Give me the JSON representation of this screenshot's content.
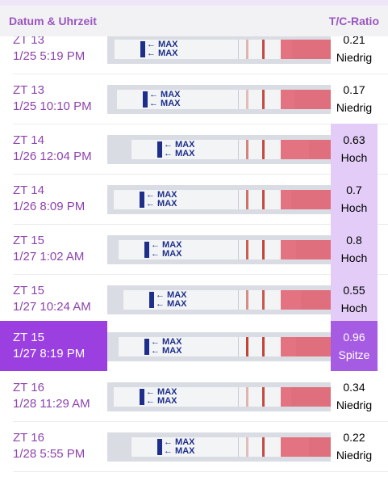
{
  "header": {
    "left": "Datum & Uhrzeit",
    "right": "T/C-Ratio"
  },
  "rows": [
    {
      "zt": "ZT 13",
      "datetime": "1/25 5:19 PM",
      "ratio": "0.21",
      "level": "Niedrig",
      "tline": 0.35,
      "cline": 0.9
    },
    {
      "zt": "ZT 13",
      "datetime": "1/25 10:10 PM",
      "ratio": "0.17",
      "level": "Niedrig",
      "tline": 0.3,
      "cline": 0.9
    },
    {
      "zt": "ZT 14",
      "datetime": "1/26 12:04 PM",
      "ratio": "0.63",
      "level": "Hoch",
      "tline": 0.6,
      "cline": 0.9
    },
    {
      "zt": "ZT 14",
      "datetime": "1/26 8:09 PM",
      "ratio": "0.7",
      "level": "Hoch",
      "tline": 0.7,
      "cline": 0.9
    },
    {
      "zt": "ZT 15",
      "datetime": "1/27 1:02 AM",
      "ratio": "0.8",
      "level": "Hoch",
      "tline": 0.8,
      "cline": 0.95
    },
    {
      "zt": "ZT 15",
      "datetime": "1/27 10:24 AM",
      "ratio": "0.55",
      "level": "Hoch",
      "tline": 0.55,
      "cline": 0.85
    },
    {
      "zt": "ZT 15",
      "datetime": "1/27 8:19 PM",
      "ratio": "0.96",
      "level": "Spitze",
      "tline": 0.95,
      "cline": 0.95,
      "selected": true
    },
    {
      "zt": "ZT 16",
      "datetime": "1/28 11:29 AM",
      "ratio": "0.34",
      "level": "Niedrig",
      "tline": 0.35,
      "cline": 0.9
    },
    {
      "zt": "ZT 16",
      "datetime": "1/28 5:55 PM",
      "ratio": "0.22",
      "level": "Niedrig",
      "tline": 0.3,
      "cline": 0.9
    }
  ],
  "strip_label": "MAX",
  "colors": {
    "accent": "#9b3fe0",
    "high_bg": "#e3cdf8",
    "text_purple": "#8e44ad",
    "test_pad": "#e05c6c",
    "max_blue": "#1d2f8a"
  }
}
